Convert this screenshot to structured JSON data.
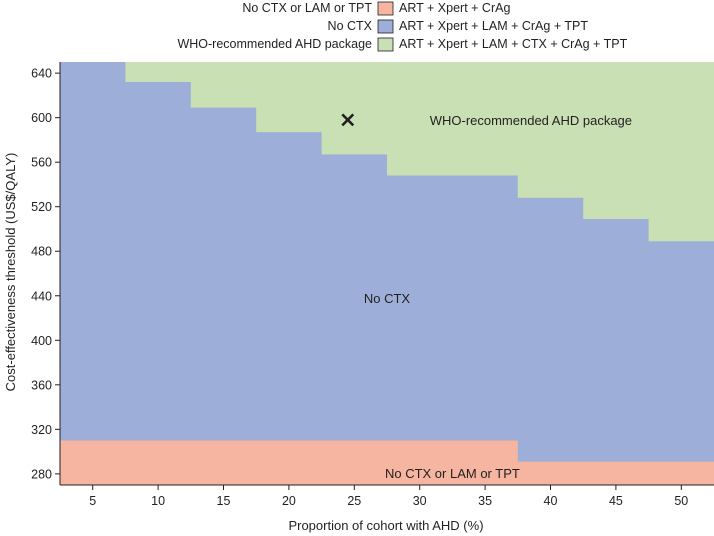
{
  "colors": {
    "salmon": "#f5b5a0",
    "blue": "#9dafd8",
    "green": "#c8e0b4",
    "axis": "#231f20",
    "marker": "#231f20"
  },
  "chart_data": {
    "type": "area",
    "xlabel": "Proportion of cohort with AHD (%)",
    "ylabel": "Cost-effectiveness threshold (US$/QALY)",
    "xlim": [
      2.5,
      52.5
    ],
    "ylim": [
      270,
      650
    ],
    "xticks": [
      5,
      10,
      15,
      20,
      25,
      30,
      35,
      40,
      45,
      50
    ],
    "yticks": [
      280,
      320,
      360,
      400,
      440,
      480,
      520,
      560,
      600,
      640
    ],
    "grid": false,
    "legend_placement": "top-right",
    "legend": [
      {
        "name": "No CTX or LAM or TPT",
        "label": "ART + Xpert + CrAg",
        "color": "#f5b5a0"
      },
      {
        "name": "No CTX",
        "label": "ART + Xpert + LAM + CrAg + TPT",
        "color": "#9dafd8"
      },
      {
        "name": "WHO-recommended AHD package",
        "label": "ART + Xpert + LAM + CTX + CrAg + TPT",
        "color": "#c8e0b4"
      }
    ],
    "region_labels": [
      {
        "text": "WHO-recommended AHD package",
        "x": 38.5,
        "y": 598
      },
      {
        "text": "No CTX",
        "x": 27.5,
        "y": 438
      },
      {
        "text": "No CTX or LAM or TPT",
        "x": 32.5,
        "y": 281
      }
    ],
    "boundaries": {
      "x_bins": [
        2.5,
        7.5,
        12.5,
        17.5,
        22.5,
        27.5,
        32.5,
        37.5,
        42.5,
        47.5,
        52.5
      ],
      "lower_boundary": [
        310,
        310,
        310,
        310,
        310,
        310,
        310,
        291,
        291,
        291
      ],
      "upper_boundary": [
        650,
        632,
        609,
        587,
        567,
        548,
        548,
        528,
        509,
        489
      ]
    },
    "marker": {
      "x": 24.5,
      "y": 598,
      "symbol": "x"
    }
  }
}
